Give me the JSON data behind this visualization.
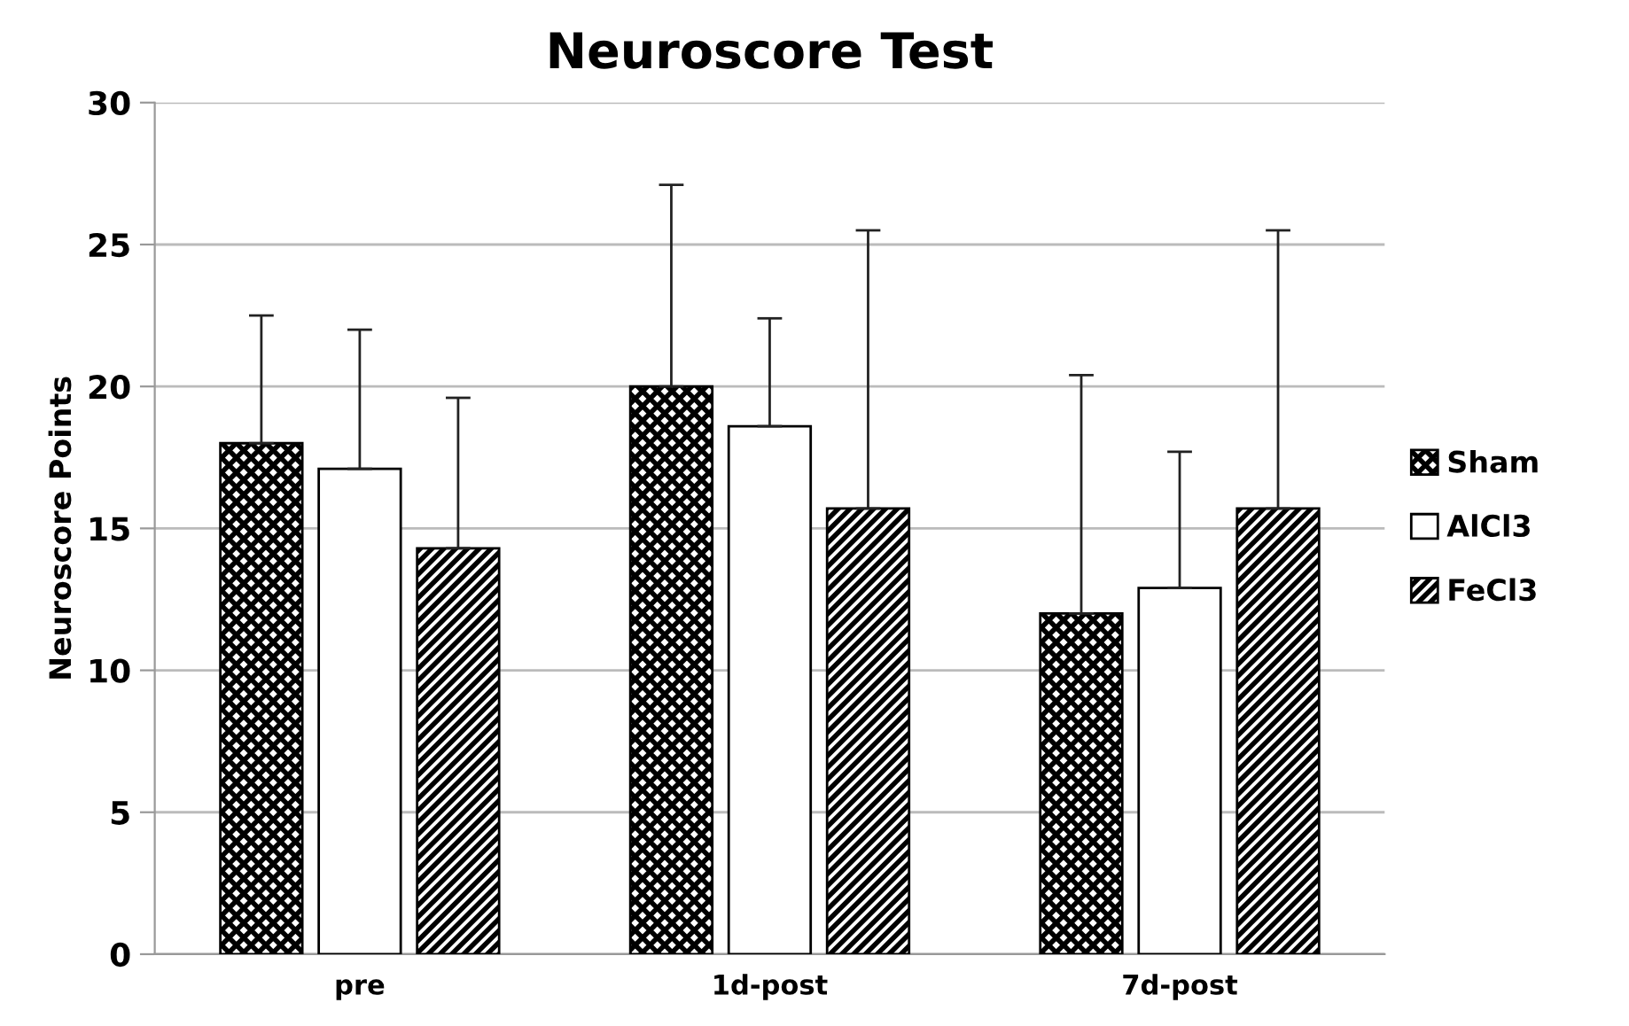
{
  "chart_data": {
    "type": "bar",
    "title": "Neuroscore Test",
    "ylabel": "Neuroscore Points",
    "categories": [
      "pre",
      "1d-post",
      "7d-post"
    ],
    "series": [
      {
        "name": "Sham",
        "color": "#000000",
        "values": [
          18.0,
          20.0,
          12.0
        ],
        "errors": [
          [
            18.0,
            22.5
          ],
          [
            20.0,
            27.1
          ],
          [
            12.0,
            20.4
          ]
        ]
      },
      {
        "name": "AlCl3",
        "color": "#000000",
        "values": [
          17.1,
          18.6,
          12.9
        ],
        "errors": [
          [
            17.1,
            22.0
          ],
          [
            18.6,
            22.4
          ],
          [
            12.9,
            17.7
          ]
        ]
      },
      {
        "name": "FeCl3",
        "color": "#000000",
        "values": [
          14.3,
          15.7,
          15.7
        ],
        "errors": [
          [
            14.3,
            19.6
          ],
          [
            15.7,
            25.5
          ],
          [
            15.7,
            25.5
          ]
        ]
      }
    ],
    "ylim": [
      0,
      30
    ],
    "yticks": [
      0,
      5,
      10,
      15,
      20,
      25,
      30
    ],
    "grid": "y",
    "legend": "right"
  }
}
